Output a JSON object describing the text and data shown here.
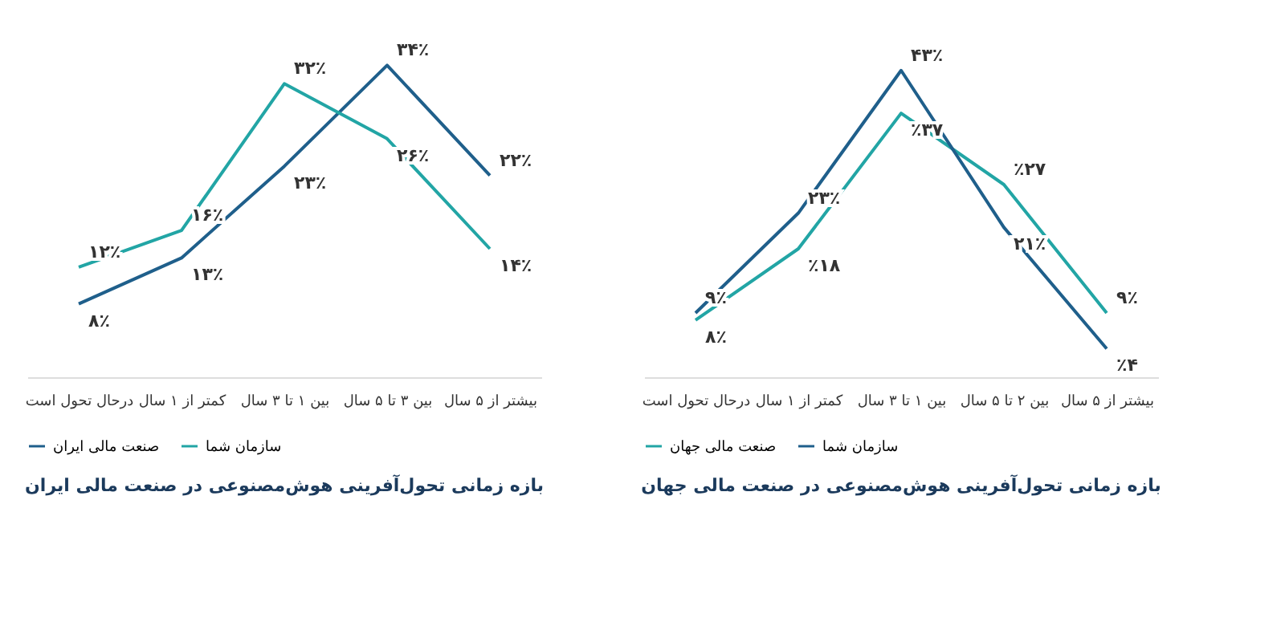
{
  "chart_data": [
    {
      "type": "line",
      "title": "بازه زمانی تحول‌آفرینی هوش‌مصنوعی در صنعت مالی ایران",
      "categories": [
        "درحال تحول است",
        "کمتر از ۱ سال",
        "بین ۱ تا ۳ سال",
        "بین ۳ تا ۵ سال",
        "بیشتر از ۵ سال"
      ],
      "legend": "bottom",
      "grid": false,
      "marker": "none",
      "tick_labels": "x",
      "series": [
        {
          "name": "صنعت مالی ایران",
          "color": "#1f5f8b",
          "values": [
            8,
            13,
            23,
            34,
            22
          ],
          "value_labels": [
            "۸٪",
            "۱۳٪",
            "۲۳٪",
            "۳۴٪",
            "۲۲٪"
          ]
        },
        {
          "name": "سازمان شما",
          "color": "#22a5a5",
          "values": [
            12,
            16,
            32,
            26,
            14
          ],
          "value_labels": [
            "۱۲٪",
            "۱۶٪",
            "۳۲٪",
            "۲۶٪",
            "۱۴٪"
          ]
        }
      ]
    },
    {
      "type": "line",
      "title": "بازه زمانی تحول‌آفرینی هوش‌مصنوعی در صنعت مالی جهان",
      "categories": [
        "درحال تحول است",
        "کمتر از ۱ سال",
        "بین ۱ تا ۳ سال",
        "بین ۲ تا ۵ سال",
        "بیشتر از ۵ سال"
      ],
      "legend": "bottom",
      "grid": false,
      "marker": "none",
      "tick_labels": "x",
      "series": [
        {
          "name": "صنعت مالی جهان",
          "color": "#22a5a5",
          "values": [
            8,
            18,
            37,
            27,
            9
          ],
          "value_labels": [
            "۸٪",
            "٪۱۸",
            "٪۳۷",
            "٪۲۷",
            "۹٪"
          ]
        },
        {
          "name": "سازمان شما",
          "color": "#1f5f8b",
          "values": [
            9,
            23,
            43,
            21,
            4
          ],
          "value_labels": [
            "۹٪",
            "۲۳٪",
            "۴۳٪",
            "۲۱٪",
            "٪۴"
          ]
        }
      ]
    }
  ]
}
